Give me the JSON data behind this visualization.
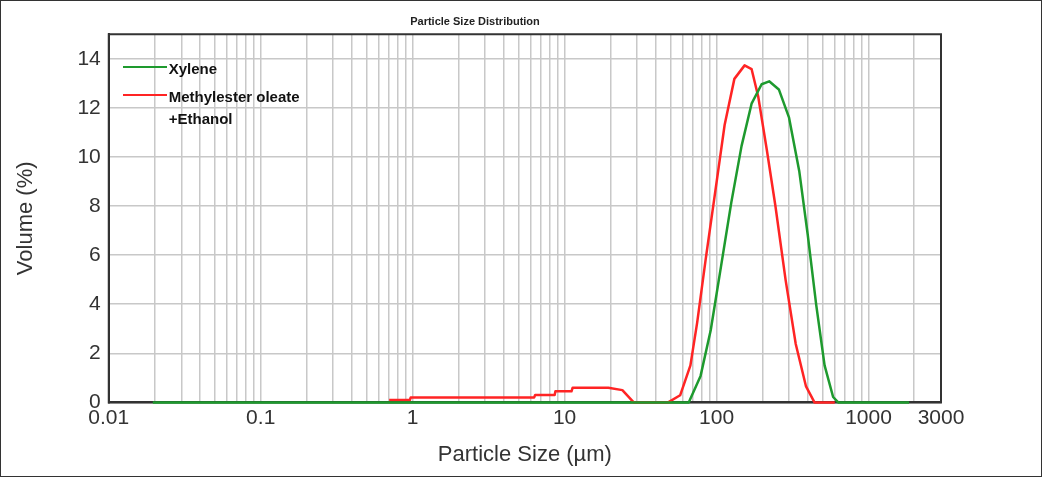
{
  "chart_data": {
    "type": "line",
    "title": "Particle Size Distribution",
    "xlabel": "Particle Size (µm)",
    "ylabel": "Volume (%)",
    "log": "x",
    "grid": true,
    "legend": "top left",
    "xlim": [
      0.01,
      3000
    ],
    "ylim": [
      0,
      15
    ],
    "xticks": [
      0.01,
      {
        "value": 0.02,
        "label": null
      },
      {
        "value": 0.03,
        "label": null
      },
      {
        "value": 0.04,
        "label": null
      },
      {
        "value": 0.05,
        "label": null
      },
      {
        "value": 0.06,
        "label": null
      },
      {
        "value": 0.07,
        "label": null
      },
      {
        "value": 0.08,
        "label": null
      },
      {
        "value": 0.09,
        "label": null
      },
      0.1,
      {
        "value": 0.2,
        "label": null
      },
      {
        "value": 0.3,
        "label": null
      },
      {
        "value": 0.4,
        "label": null
      },
      {
        "value": 0.5,
        "label": null
      },
      {
        "value": 0.6,
        "label": null
      },
      {
        "value": 0.7,
        "label": null
      },
      {
        "value": 0.8,
        "label": null
      },
      {
        "value": 0.9,
        "label": null
      },
      1,
      {
        "value": 2,
        "label": null
      },
      {
        "value": 3,
        "label": null
      },
      {
        "value": 4,
        "label": null
      },
      {
        "value": 5,
        "label": null
      },
      {
        "value": 6,
        "label": null
      },
      {
        "value": 7,
        "label": null
      },
      {
        "value": 8,
        "label": null
      },
      {
        "value": 9,
        "label": null
      },
      10,
      {
        "value": 20,
        "label": null
      },
      {
        "value": 30,
        "label": null
      },
      {
        "value": 40,
        "label": null
      },
      {
        "value": 50,
        "label": null
      },
      {
        "value": 60,
        "label": null
      },
      {
        "value": 70,
        "label": null
      },
      {
        "value": 80,
        "label": null
      },
      {
        "value": 90,
        "label": null
      },
      100,
      {
        "value": 200,
        "label": null
      },
      {
        "value": 300,
        "label": null
      },
      {
        "value": 400,
        "label": null
      },
      {
        "value": 500,
        "label": null
      },
      {
        "value": 600,
        "label": null
      },
      {
        "value": 700,
        "label": null
      },
      {
        "value": 800,
        "label": null
      },
      {
        "value": 900,
        "label": null
      },
      1000,
      {
        "value": 2000,
        "label": null
      },
      3000
    ],
    "yticks": [
      0,
      2,
      4,
      6,
      8,
      10,
      12,
      14
    ],
    "series": [
      {
        "name": "Xylene",
        "color": "#1e9a2e",
        "x": [
          0.0195,
          1,
          10,
          65.6,
          78.5,
          91.6,
          107,
          125,
          146,
          170,
          198,
          222,
          257,
          300,
          350,
          398,
          453,
          514,
          585,
          632,
          1000,
          1850
        ],
        "values": [
          0,
          0,
          0,
          0,
          1.08,
          2.95,
          5.54,
          8.14,
          10.44,
          12.17,
          12.96,
          13.08,
          12.75,
          11.6,
          9.43,
          6.84,
          3.96,
          1.51,
          0.22,
          0,
          0,
          0
        ]
      },
      {
        "name": "Methylester oleate +Ethanol",
        "color": "#ff2424",
        "x": [
          0.7,
          0.96,
          0.97,
          6.3,
          6.4,
          8.6,
          8.7,
          11.1,
          11.3,
          19.4,
          24,
          28.5,
          48,
          57.6,
          67.3,
          74.5,
          84.8,
          96.5,
          113,
          131,
          153,
          170,
          188,
          214,
          244,
          285,
          332,
          388,
          441,
          600
        ],
        "values": [
          0.1,
          0.1,
          0.2,
          0.2,
          0.3,
          0.3,
          0.45,
          0.45,
          0.6,
          0.6,
          0.5,
          0,
          0,
          0.29,
          1.51,
          3.24,
          5.83,
          8.28,
          11.3,
          13.18,
          13.73,
          13.58,
          12.46,
          10.3,
          8.0,
          4.97,
          2.38,
          0.65,
          0,
          0
        ]
      }
    ]
  }
}
